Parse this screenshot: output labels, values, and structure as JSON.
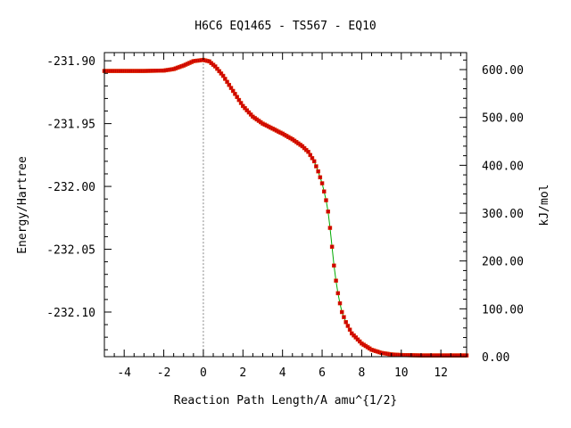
{
  "chart_data": {
    "type": "line",
    "title": "H6C6   EQ1465 - TS567 - EQ10",
    "xlabel": "Reaction Path Length/A amu^{1/2}",
    "ylabel": "Energy/Hartree",
    "y2label": "kJ/mol",
    "xlim": [
      -5.0,
      13.3
    ],
    "ylim": [
      -232.1355,
      -231.8935
    ],
    "y2lim": [
      0,
      635.5
    ],
    "x_ticks": [
      -4,
      -2,
      0,
      2,
      4,
      6,
      8,
      10,
      12
    ],
    "x_tick_labels": [
      "-4",
      "-2",
      "0",
      "2",
      "4",
      "6",
      "8",
      "10",
      "12"
    ],
    "y_ticks": [
      -231.9,
      -231.95,
      -232.0,
      -232.05,
      -232.1
    ],
    "y_tick_labels": [
      "-231.90",
      "-231.95",
      "-232.00",
      "-232.05",
      "-232.10"
    ],
    "y2_ticks": [
      600,
      500,
      400,
      300,
      200,
      100,
      0
    ],
    "y2_tick_labels": [
      "600.00",
      "500.00",
      "400.00",
      "300.00",
      "200.00",
      "100.00",
      "0.00"
    ],
    "ts_marker_x": 0,
    "line_color": "#00aa00",
    "marker_color": "#cc0000",
    "marker_edge_color": "#e03000",
    "ts_line_color": "#888888",
    "series": [
      {
        "x": [
          -5.0,
          -4.0,
          -3.0,
          -2.0,
          -1.5,
          -1.0,
          -0.5,
          0.0,
          0.3,
          0.6,
          1.0,
          1.5,
          2.0,
          2.5,
          3.0,
          3.5,
          4.0,
          4.5,
          5.0,
          5.3,
          5.6,
          5.8,
          6.0,
          6.1,
          6.2,
          6.3,
          6.4,
          6.5,
          6.6,
          6.7,
          6.8,
          6.9,
          7.0,
          7.2,
          7.5,
          8.0,
          8.5,
          9.0,
          9.5,
          10.0,
          11.0,
          12.0,
          13.3
        ],
        "y": [
          -231.9081,
          -231.9081,
          -231.9081,
          -231.9078,
          -231.9066,
          -231.9038,
          -231.9003,
          -231.8993,
          -231.9005,
          -231.9045,
          -231.912,
          -231.924,
          -231.936,
          -231.9445,
          -231.95,
          -231.954,
          -231.958,
          -231.9625,
          -231.968,
          -231.9725,
          -231.98,
          -231.988,
          -231.9975,
          -232.004,
          -232.011,
          -232.02,
          -232.033,
          -232.048,
          -232.063,
          -232.075,
          -232.085,
          -232.093,
          -232.1,
          -232.108,
          -232.117,
          -232.125,
          -232.13,
          -232.1325,
          -232.1337,
          -232.1342,
          -232.1345,
          -232.1345,
          -232.1345
        ]
      }
    ]
  }
}
